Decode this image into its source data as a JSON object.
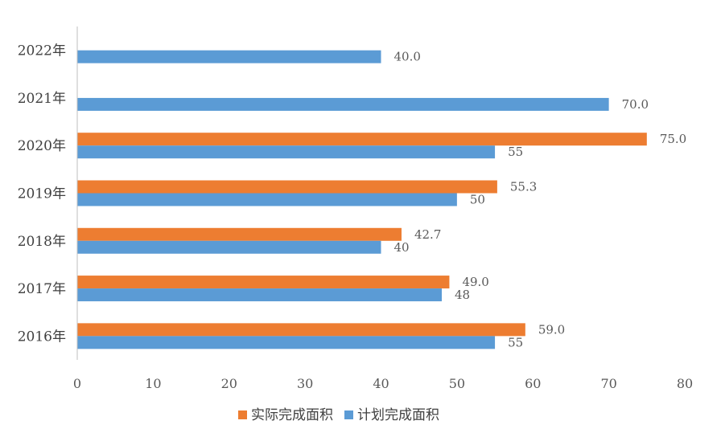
{
  "chart_data": {
    "type": "bar",
    "orientation": "horizontal",
    "title": "",
    "xlabel": "",
    "ylabel": "",
    "xlim": [
      0,
      80
    ],
    "x_ticks": [
      0,
      10,
      20,
      30,
      40,
      50,
      60,
      70,
      80
    ],
    "grid": false,
    "legend_position": "bottom",
    "categories": [
      "2016年",
      "2017年",
      "2018年",
      "2019年",
      "2020年",
      "2021年",
      "2022年"
    ],
    "series": [
      {
        "name": "实际完成面积",
        "color": "#ED7D31",
        "values": [
          59.0,
          49.0,
          42.7,
          55.3,
          75.0,
          null,
          null
        ],
        "labels": [
          "59.0",
          "49.0",
          "42.7",
          "55.3",
          "75.0",
          "",
          ""
        ]
      },
      {
        "name": "计划完成面积",
        "color": "#5B9BD5",
        "values": [
          55,
          48,
          40,
          50,
          55,
          70.0,
          40.0
        ],
        "labels": [
          "55",
          "48",
          "40",
          "50",
          "55",
          "70.0",
          "40.0"
        ]
      }
    ]
  }
}
